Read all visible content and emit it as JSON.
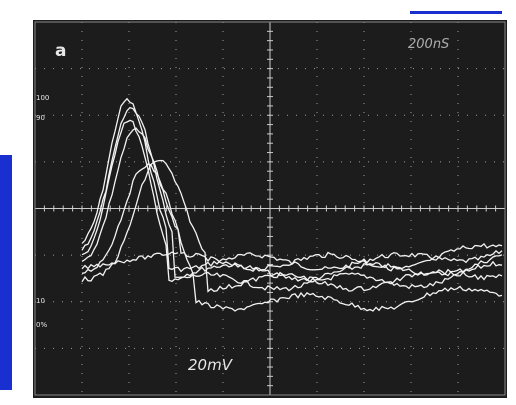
{
  "panel_label": "a",
  "timebase": "200nS",
  "volts_per_div": "20mV",
  "left_marks": [
    "100",
    "90",
    "10",
    "0%"
  ]
}
